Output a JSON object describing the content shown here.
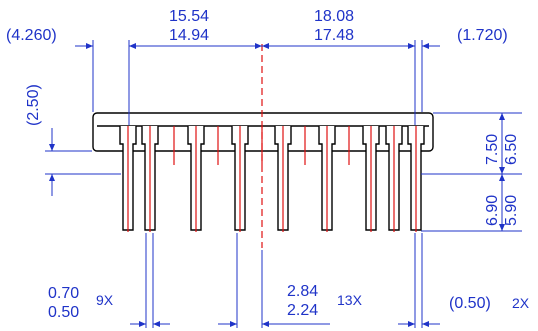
{
  "colors": {
    "dimension": "#1f33c8",
    "outline": "#000000",
    "pin": "#e01010"
  },
  "dimensions": {
    "left_offset": "(4.260)",
    "left_span_max": "15.54",
    "left_span_min": "14.94",
    "right_span_max": "18.08",
    "right_span_min": "17.48",
    "right_offset": "(1.720)",
    "body_thickness": "(2.50)",
    "body_height_max": "7.50",
    "body_height_min": "6.50",
    "lead_length_max": "6.90",
    "lead_length_min": "5.90",
    "lead_width_max": "0.70",
    "lead_width_min": "0.50",
    "lead_width_count": "9X",
    "pitch_max": "2.84",
    "pitch_min": "2.24",
    "pitch_count": "13X",
    "end_offset": "(0.50)",
    "end_offset_count": "2X"
  }
}
